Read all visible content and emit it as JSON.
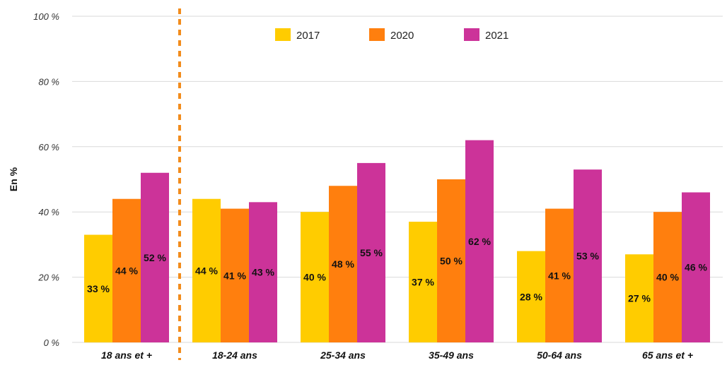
{
  "chart_data": {
    "type": "bar",
    "title": "",
    "xlabel": "",
    "ylabel": "En %",
    "ylim": [
      0,
      100
    ],
    "yticks": [
      "0 %",
      "20 %",
      "40 %",
      "60 %",
      "80 %",
      "100 %"
    ],
    "grid": true,
    "legend_position": "top-center",
    "categories": [
      "18 ans et +",
      "18-24 ans",
      "25-34 ans",
      "35-49 ans",
      "50-64 ans",
      "65 ans et +"
    ],
    "series": [
      {
        "name": "2017",
        "color": "#ffcc00",
        "values": [
          33,
          44,
          40,
          37,
          28,
          27
        ],
        "labels": [
          "33 %",
          "44 %",
          "40 %",
          "37 %",
          "28 %",
          "27 %"
        ]
      },
      {
        "name": "2020",
        "color": "#ff7f0e",
        "values": [
          44,
          41,
          48,
          50,
          41,
          40
        ],
        "labels": [
          "44 %",
          "41 %",
          "48 %",
          "50 %",
          "41 %",
          "40 %"
        ]
      },
      {
        "name": "2021",
        "color": "#cc3399",
        "values": [
          52,
          43,
          55,
          62,
          53,
          46
        ],
        "labels": [
          "52 %",
          "43 %",
          "55 %",
          "62 %",
          "53 %",
          "46 %"
        ]
      }
    ],
    "separator": {
      "after_category": "18 ans et +",
      "style": "dashed",
      "color": "#f28c1c"
    }
  }
}
